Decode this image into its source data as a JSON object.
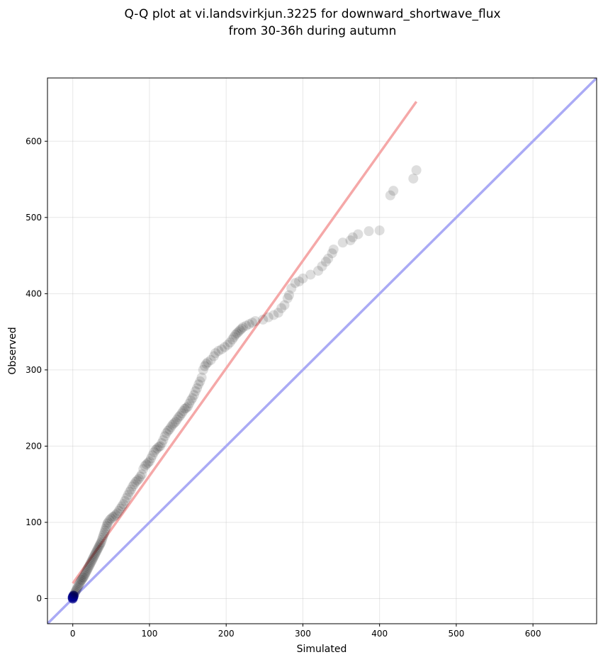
{
  "chart_data": {
    "type": "scatter",
    "title_lines": [
      "Q-Q plot at vi.landsvirkjun.3225 for downward_shortwave_flux",
      "from 30-36h during autumn"
    ],
    "xlabel": "Simulated",
    "ylabel": "Observed",
    "xlim": [
      -33,
      683
    ],
    "ylim": [
      -33,
      683
    ],
    "xticks": [
      0,
      100,
      200,
      300,
      400,
      500,
      600
    ],
    "yticks": [
      0,
      100,
      200,
      300,
      400,
      500,
      600
    ],
    "grid": true,
    "colors": {
      "points": "#000000",
      "identity_line": "#aaaaf5",
      "fit_line": "#f5a8a8",
      "low_points": "#00008b"
    },
    "identity_line": {
      "x": [
        -33,
        683
      ],
      "y": [
        -33,
        683
      ]
    },
    "fit_line": {
      "x": [
        0,
        448
      ],
      "y": [
        20,
        652
      ]
    },
    "series": [
      {
        "points": [
          [
            0,
            0
          ],
          [
            0,
            1
          ],
          [
            0,
            2
          ],
          [
            1,
            3
          ],
          [
            1,
            4
          ],
          [
            2,
            6
          ],
          [
            3,
            8
          ],
          [
            4,
            10
          ],
          [
            5,
            12
          ],
          [
            6,
            14
          ],
          [
            7,
            16
          ],
          [
            8,
            18
          ],
          [
            9,
            20
          ],
          [
            10,
            22
          ],
          [
            11,
            24
          ],
          [
            12,
            25
          ],
          [
            13,
            27
          ],
          [
            14,
            28
          ],
          [
            15,
            30
          ],
          [
            16,
            32
          ],
          [
            17,
            34
          ],
          [
            18,
            36
          ],
          [
            19,
            38
          ],
          [
            20,
            40
          ],
          [
            21,
            42
          ],
          [
            22,
            44
          ],
          [
            23,
            46
          ],
          [
            24,
            48
          ],
          [
            25,
            50
          ],
          [
            26,
            52
          ],
          [
            27,
            54
          ],
          [
            28,
            56
          ],
          [
            29,
            58
          ],
          [
            30,
            60
          ],
          [
            31,
            62
          ],
          [
            32,
            64
          ],
          [
            33,
            66
          ],
          [
            34,
            68
          ],
          [
            35,
            70
          ],
          [
            36,
            72
          ],
          [
            37,
            74
          ],
          [
            38,
            77
          ],
          [
            39,
            80
          ],
          [
            40,
            83
          ],
          [
            41,
            86
          ],
          [
            42,
            89
          ],
          [
            43,
            92
          ],
          [
            44,
            95
          ],
          [
            45,
            98
          ],
          [
            46,
            100
          ],
          [
            48,
            103
          ],
          [
            50,
            105
          ],
          [
            52,
            107
          ],
          [
            54,
            108
          ],
          [
            56,
            110
          ],
          [
            58,
            112
          ],
          [
            60,
            115
          ],
          [
            62,
            118
          ],
          [
            64,
            121
          ],
          [
            66,
            124
          ],
          [
            68,
            128
          ],
          [
            70,
            132
          ],
          [
            72,
            136
          ],
          [
            74,
            140
          ],
          [
            76,
            143
          ],
          [
            78,
            147
          ],
          [
            80,
            150
          ],
          [
            82,
            153
          ],
          [
            84,
            155
          ],
          [
            86,
            157
          ],
          [
            88,
            160
          ],
          [
            90,
            163
          ],
          [
            92,
            170
          ],
          [
            94,
            174
          ],
          [
            96,
            176
          ],
          [
            98,
            178
          ],
          [
            100,
            180
          ],
          [
            102,
            184
          ],
          [
            104,
            188
          ],
          [
            106,
            192
          ],
          [
            108,
            195
          ],
          [
            110,
            197
          ],
          [
            112,
            199
          ],
          [
            114,
            200
          ],
          [
            116,
            204
          ],
          [
            118,
            208
          ],
          [
            120,
            213
          ],
          [
            122,
            217
          ],
          [
            124,
            220
          ],
          [
            126,
            222
          ],
          [
            128,
            225
          ],
          [
            130,
            228
          ],
          [
            132,
            230
          ],
          [
            134,
            232
          ],
          [
            136,
            235
          ],
          [
            138,
            238
          ],
          [
            140,
            240
          ],
          [
            142,
            243
          ],
          [
            144,
            246
          ],
          [
            146,
            249
          ],
          [
            148,
            250
          ],
          [
            150,
            252
          ],
          [
            152,
            256
          ],
          [
            154,
            260
          ],
          [
            156,
            263
          ],
          [
            158,
            267
          ],
          [
            160,
            272
          ],
          [
            162,
            276
          ],
          [
            164,
            281
          ],
          [
            166,
            285
          ],
          [
            168,
            290
          ],
          [
            170,
            300
          ],
          [
            172,
            305
          ],
          [
            174,
            308
          ],
          [
            176,
            310
          ],
          [
            180,
            313
          ],
          [
            184,
            318
          ],
          [
            186,
            322
          ],
          [
            190,
            325
          ],
          [
            194,
            327
          ],
          [
            198,
            330
          ],
          [
            202,
            333
          ],
          [
            205,
            336
          ],
          [
            208,
            340
          ],
          [
            210,
            343
          ],
          [
            212,
            346
          ],
          [
            214,
            348
          ],
          [
            216,
            350
          ],
          [
            218,
            352
          ],
          [
            220,
            354
          ],
          [
            222,
            356
          ],
          [
            226,
            358
          ],
          [
            230,
            360
          ],
          [
            234,
            362
          ],
          [
            238,
            364
          ],
          [
            248,
            366
          ],
          [
            255,
            369
          ],
          [
            262,
            372
          ],
          [
            268,
            375
          ],
          [
            272,
            381
          ],
          [
            276,
            385
          ],
          [
            280,
            394
          ],
          [
            282,
            398
          ],
          [
            285,
            407
          ],
          [
            290,
            414
          ],
          [
            295,
            416
          ],
          [
            300,
            420
          ],
          [
            310,
            425
          ],
          [
            320,
            430
          ],
          [
            325,
            436
          ],
          [
            330,
            442
          ],
          [
            333,
            446
          ],
          [
            338,
            453
          ],
          [
            340,
            458
          ],
          [
            352,
            467
          ],
          [
            362,
            470
          ],
          [
            365,
            474
          ],
          [
            372,
            478
          ],
          [
            386,
            482
          ],
          [
            400,
            483
          ],
          [
            414,
            529
          ],
          [
            418,
            535
          ],
          [
            444,
            551
          ],
          [
            448,
            562
          ]
        ]
      }
    ]
  }
}
